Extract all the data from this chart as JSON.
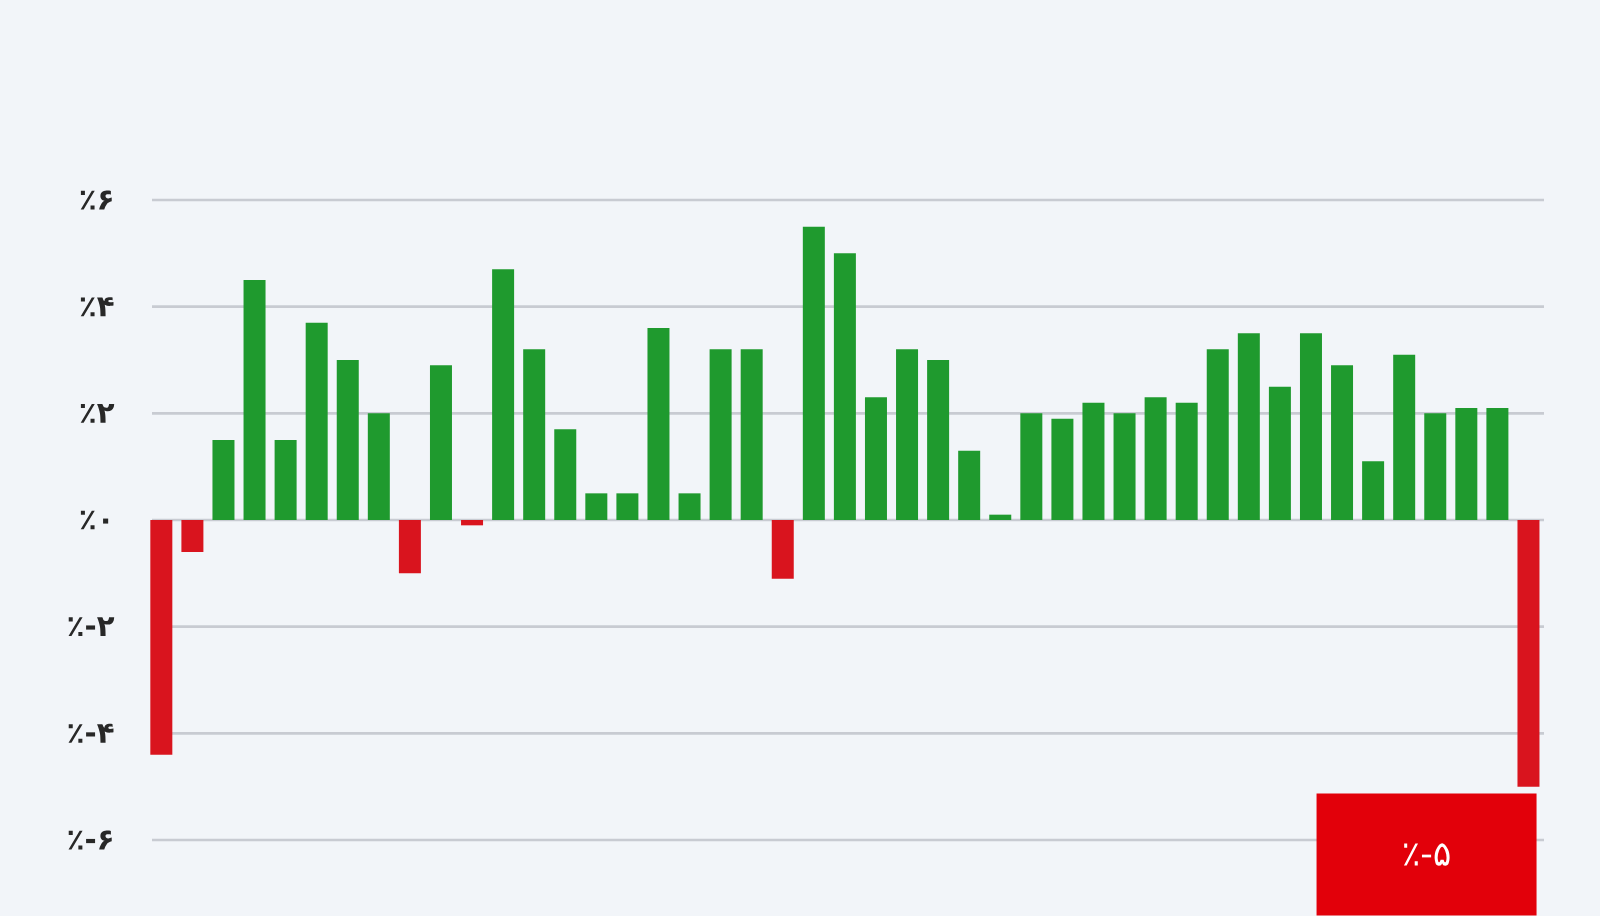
{
  "chart_data": {
    "type": "bar",
    "categories": [
      null,
      null,
      null,
      null,
      null,
      null,
      null,
      null,
      null,
      null,
      null,
      null,
      null,
      null,
      null,
      null,
      null,
      null,
      null,
      null,
      null,
      null,
      null,
      null,
      null,
      null,
      null,
      null,
      null,
      null,
      null,
      null,
      null,
      null,
      null,
      null,
      null,
      null,
      null,
      null,
      null,
      null,
      null,
      null,
      null
    ],
    "values": [
      -4.4,
      -0.6,
      1.5,
      4.5,
      1.5,
      3.7,
      3.0,
      2.0,
      -1.0,
      2.9,
      -0.1,
      4.7,
      3.2,
      1.7,
      0.5,
      0.5,
      3.6,
      0.5,
      3.2,
      3.2,
      -1.1,
      5.5,
      5.0,
      2.3,
      3.2,
      3.0,
      1.3,
      0.1,
      2.0,
      1.9,
      2.2,
      2.0,
      2.3,
      2.2,
      3.2,
      3.5,
      2.5,
      3.5,
      2.9,
      1.1,
      3.1,
      2.0,
      2.1,
      2.1,
      -5.0
    ],
    "colors": [
      "#d9141e",
      "#d9141e",
      "#1f9a2e",
      "#1f9a2e",
      "#1f9a2e",
      "#1f9a2e",
      "#1f9a2e",
      "#1f9a2e",
      "#d9141e",
      "#1f9a2e",
      "#d9141e",
      "#1f9a2e",
      "#1f9a2e",
      "#1f9a2e",
      "#1f9a2e",
      "#1f9a2e",
      "#1f9a2e",
      "#1f9a2e",
      "#1f9a2e",
      "#1f9a2e",
      "#d9141e",
      "#1f9a2e",
      "#1f9a2e",
      "#1f9a2e",
      "#1f9a2e",
      "#1f9a2e",
      "#1f9a2e",
      "#1f9a2e",
      "#1f9a2e",
      "#1f9a2e",
      "#1f9a2e",
      "#1f9a2e",
      "#1f9a2e",
      "#1f9a2e",
      "#1f9a2e",
      "#1f9a2e",
      "#1f9a2e",
      "#1f9a2e",
      "#1f9a2e",
      "#1f9a2e",
      "#1f9a2e",
      "#1f9a2e",
      "#1f9a2e",
      "#1f9a2e",
      "#d9141e"
    ],
    "ylim": [
      -6,
      6
    ],
    "yticks": [
      {
        "value": -6,
        "label": "٪-۶"
      },
      {
        "value": -4,
        "label": "٪-۴"
      },
      {
        "value": -2,
        "label": "٪-۲"
      },
      {
        "value": 0,
        "label": "٪۰"
      },
      {
        "value": 2,
        "label": "٪۲"
      },
      {
        "value": 4,
        "label": "٪۴"
      },
      {
        "value": 6,
        "label": "٪۶"
      }
    ],
    "grid": "y",
    "annotations": [
      "٪-۵"
    ]
  }
}
